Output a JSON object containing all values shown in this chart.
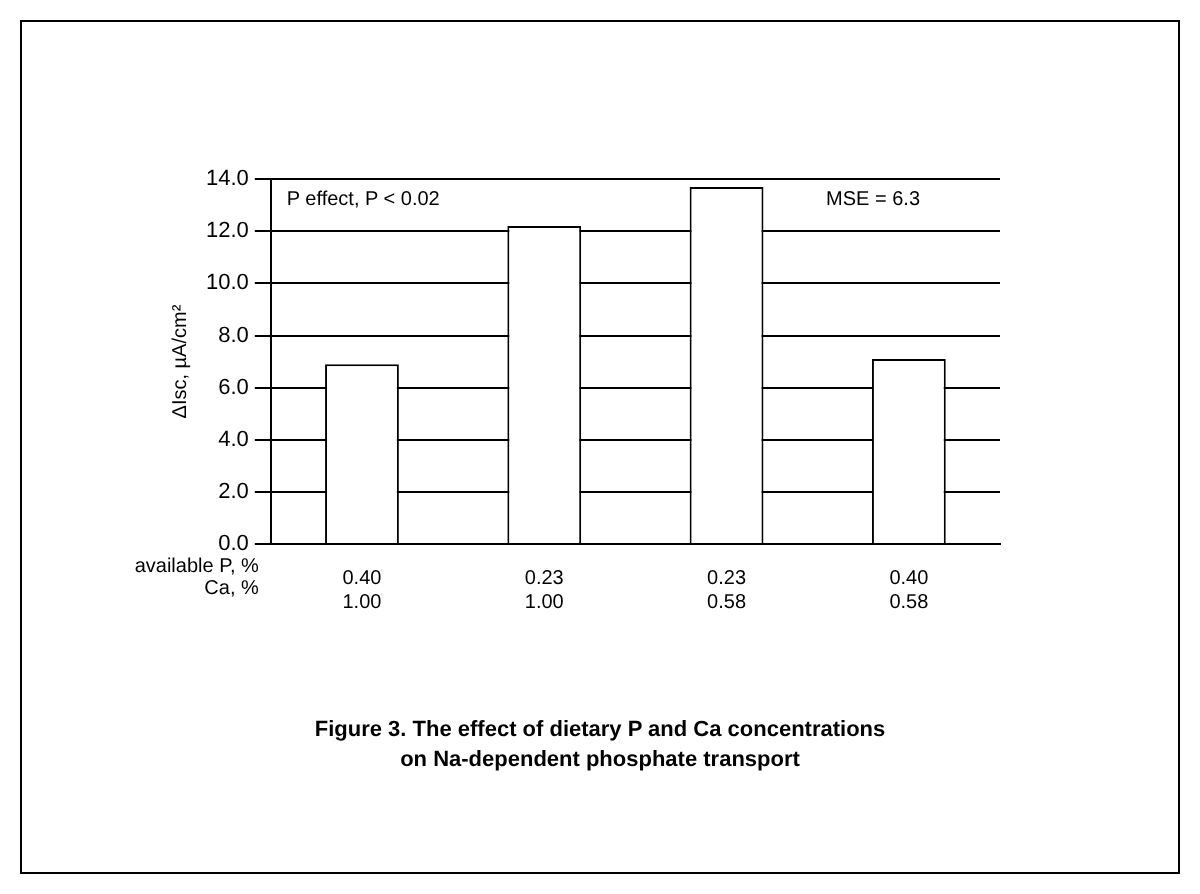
{
  "chart_data": {
    "type": "bar",
    "categories": [
      "0.40\n1.00",
      "0.23\n1.00",
      "0.23\n0.58",
      "0.40\n0.58"
    ],
    "values": [
      6.9,
      12.2,
      13.7,
      7.1
    ],
    "color": "#ffffff",
    "xlabel": "available P, %\nCa, %",
    "ylabel": "ΔIsc, µA/cm²",
    "ylim": [
      0,
      14
    ],
    "yticks": [
      {
        "value": 0,
        "label": "0.0"
      },
      {
        "value": 2,
        "label": "2.0"
      },
      {
        "value": 4,
        "label": "4.0"
      },
      {
        "value": 6,
        "label": "6.0"
      },
      {
        "value": 8,
        "label": "8.0"
      },
      {
        "value": 10,
        "label": "10.0"
      },
      {
        "value": 12,
        "label": "12.0"
      },
      {
        "value": 14,
        "label": "14.0"
      }
    ],
    "grid": "y",
    "legend": false,
    "annotations": [
      "P effect, P < 0.02",
      "MSE = 6.3",
      "Figure 3.  The effect of dietary P and Ca concentrations\non Na-dependent phosphate transport"
    ]
  }
}
